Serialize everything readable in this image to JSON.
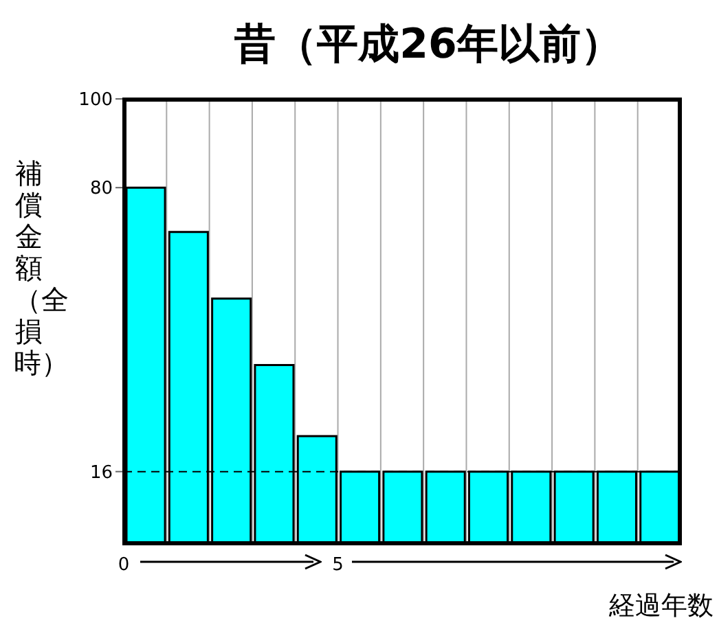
{
  "chart_data": {
    "type": "histogram",
    "title": "昔（平成26年以前）",
    "ylabel": "補償金額（全損時）",
    "xlabel": "経過年数",
    "bins": [
      0,
      1,
      2,
      3,
      4,
      5,
      6,
      7,
      8,
      9,
      10,
      11,
      12,
      13
    ],
    "values": [
      80,
      70,
      55,
      40,
      24,
      16,
      16,
      16,
      16,
      16,
      16,
      16,
      16
    ],
    "color": "#00ffff",
    "xlim": [
      0,
      13
    ],
    "xticks": [
      0,
      {
        "value": 1,
        "label": null
      },
      {
        "value": 2,
        "label": null
      },
      {
        "value": 3,
        "label": null
      },
      {
        "value": 4,
        "label": null
      },
      5,
      {
        "value": 6,
        "label": null
      },
      {
        "value": 7,
        "label": null
      },
      {
        "value": 8,
        "label": null
      },
      {
        "value": 9,
        "label": null
      },
      {
        "value": 10,
        "label": null
      },
      {
        "value": 11,
        "label": null
      },
      {
        "value": 12,
        "label": null
      },
      {
        "value": 13,
        "label": null
      }
    ],
    "ylim": [
      0,
      100
    ],
    "yticks": [
      16,
      80,
      100
    ],
    "grid": "x",
    "ref_lines": [
      {
        "axis": "y",
        "value": 16,
        "line_style": "dashed",
        "color": "#000000"
      }
    ]
  }
}
